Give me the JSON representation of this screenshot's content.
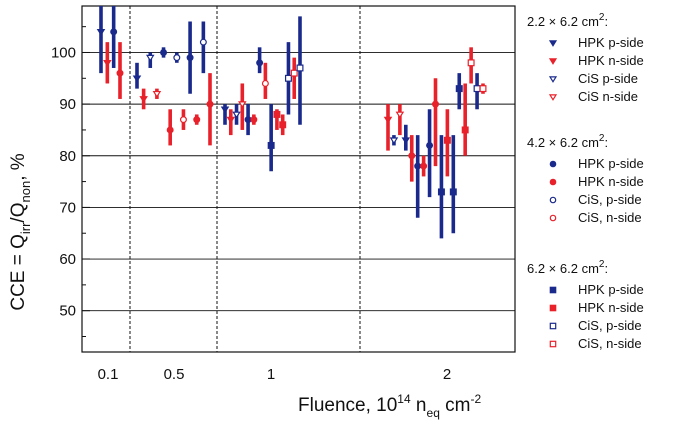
{
  "chart_data": {
    "type": "scatter",
    "xlabel": {
      "main": "Fluence, 10",
      "sup": "14",
      "n": " n",
      "sub": "eq",
      "unit": " cm",
      "unitsup": "-2"
    },
    "ylabel": {
      "main": "CCE = Q",
      "sub1": "irr",
      "mid": "/Q",
      "sub2": "non",
      "tail": ", %"
    },
    "ylim": [
      42,
      109
    ],
    "yticks": [
      50,
      60,
      70,
      80,
      90,
      100
    ],
    "xtick_labels": [
      "0.1",
      "0.5",
      "1",
      "2"
    ],
    "grid": "horizontal",
    "legend_position": "right",
    "colors": {
      "hpk": "#1a2a8c",
      "cis": "#1a2a8c",
      "red": "#e8212a"
    },
    "legend_groups": [
      {
        "title": "2.2 × 6.2 cm",
        "sup": "2",
        "suffix": ":",
        "marker": "triangle",
        "entries": [
          {
            "label": "HPK p-side",
            "color": "#1a2a8c",
            "filled": true
          },
          {
            "label": "HPK n-side",
            "color": "#e8212a",
            "filled": true
          },
          {
            "label": "CiS p-side",
            "color": "#1a2a8c",
            "filled": false
          },
          {
            "label": "CiS n-side",
            "color": "#e8212a",
            "filled": false
          }
        ]
      },
      {
        "title": "4.2 × 6.2 cm",
        "sup": "2",
        "suffix": ":",
        "marker": "circle",
        "entries": [
          {
            "label": "HPK p-side",
            "color": "#1a2a8c",
            "filled": true
          },
          {
            "label": "HPK n-side",
            "color": "#e8212a",
            "filled": true
          },
          {
            "label": "CiS, p-side",
            "color": "#1a2a8c",
            "filled": false
          },
          {
            "label": "CiS, n-side",
            "color": "#e8212a",
            "filled": false
          }
        ]
      },
      {
        "title": "6.2 × 6.2 cm",
        "sup": "2",
        "suffix": ":",
        "marker": "square",
        "entries": [
          {
            "label": "HPK p-side",
            "color": "#1a2a8c",
            "filled": true
          },
          {
            "label": "HPK n-side",
            "color": "#e8212a",
            "filled": true
          },
          {
            "label": "CiS, p-side",
            "color": "#1a2a8c",
            "filled": false
          },
          {
            "label": "CiS, n-side",
            "color": "#e8212a",
            "filled": false
          }
        ]
      }
    ],
    "points": [
      {
        "group": "0.1",
        "marker": "triangle",
        "side": "p",
        "filled": true,
        "y": 104,
        "lo": 96,
        "hi": 109
      },
      {
        "group": "0.1",
        "marker": "triangle",
        "side": "n",
        "filled": true,
        "y": 98,
        "lo": 94,
        "hi": 102
      },
      {
        "group": "0.1",
        "marker": "circle",
        "side": "p",
        "filled": true,
        "y": 104,
        "lo": 97,
        "hi": 109
      },
      {
        "group": "0.1",
        "marker": "circle",
        "side": "n",
        "filled": true,
        "y": 96,
        "lo": 91,
        "hi": 102
      },
      {
        "group": "0.5",
        "marker": "triangle",
        "side": "p",
        "filled": true,
        "y": 95,
        "lo": 93,
        "hi": 98
      },
      {
        "group": "0.5",
        "marker": "triangle",
        "side": "n",
        "filled": true,
        "y": 91,
        "lo": 89,
        "hi": 93
      },
      {
        "group": "0.5",
        "marker": "triangle",
        "side": "p",
        "filled": false,
        "y": 99,
        "lo": 97,
        "hi": 100
      },
      {
        "group": "0.5",
        "marker": "triangle",
        "side": "n",
        "filled": false,
        "y": 92,
        "lo": 91,
        "hi": 93
      },
      {
        "group": "0.5",
        "marker": "circle",
        "side": "p",
        "filled": true,
        "y": 100,
        "lo": 99,
        "hi": 101
      },
      {
        "group": "0.5",
        "marker": "circle",
        "side": "n",
        "filled": true,
        "y": 85,
        "lo": 82,
        "hi": 89
      },
      {
        "group": "0.5",
        "marker": "circle",
        "side": "p",
        "filled": false,
        "y": 99,
        "lo": 98,
        "hi": 100
      },
      {
        "group": "0.5",
        "marker": "circle",
        "side": "n",
        "filled": false,
        "y": 87,
        "lo": 85,
        "hi": 89
      },
      {
        "group": "0.5",
        "marker": "circle",
        "side": "p",
        "filled": true,
        "y": 99,
        "lo": 92,
        "hi": 106
      },
      {
        "group": "0.5",
        "marker": "circle",
        "side": "n",
        "filled": true,
        "y": 87,
        "lo": 86,
        "hi": 88
      },
      {
        "group": "0.5",
        "marker": "circle",
        "side": "p",
        "filled": false,
        "y": 102,
        "lo": 96,
        "hi": 106
      },
      {
        "group": "0.5",
        "marker": "circle",
        "side": "n",
        "filled": true,
        "y": 90,
        "lo": 82,
        "hi": 96
      },
      {
        "group": "1",
        "marker": "triangle",
        "side": "p",
        "filled": true,
        "y": 89,
        "lo": 86,
        "hi": 90
      },
      {
        "group": "1",
        "marker": "triangle",
        "side": "n",
        "filled": true,
        "y": 87,
        "lo": 84,
        "hi": 89
      },
      {
        "group": "1",
        "marker": "triangle",
        "side": "p",
        "filled": false,
        "y": 88,
        "lo": 86,
        "hi": 90
      },
      {
        "group": "1",
        "marker": "triangle",
        "side": "n",
        "filled": false,
        "y": 90,
        "lo": 85,
        "hi": 94
      },
      {
        "group": "1",
        "marker": "circle",
        "side": "p",
        "filled": true,
        "y": 87,
        "lo": 84,
        "hi": 90
      },
      {
        "group": "1",
        "marker": "circle",
        "side": "n",
        "filled": true,
        "y": 87,
        "lo": 86,
        "hi": 88
      },
      {
        "group": "1",
        "marker": "circle",
        "side": "p",
        "filled": true,
        "y": 98,
        "lo": 96,
        "hi": 101
      },
      {
        "group": "1",
        "marker": "circle",
        "side": "n",
        "filled": false,
        "y": 94,
        "lo": 91,
        "hi": 98
      },
      {
        "group": "1",
        "marker": "square",
        "side": "p",
        "filled": true,
        "y": 82,
        "lo": 77,
        "hi": 90
      },
      {
        "group": "1",
        "marker": "square",
        "side": "n",
        "filled": true,
        "y": 88,
        "lo": 85,
        "hi": 89
      },
      {
        "group": "1",
        "marker": "square",
        "side": "n",
        "filled": true,
        "y": 86,
        "lo": 84,
        "hi": 88
      },
      {
        "group": "1",
        "marker": "square",
        "side": "p",
        "filled": false,
        "y": 95,
        "lo": 88,
        "hi": 102
      },
      {
        "group": "1",
        "marker": "square",
        "side": "n",
        "filled": false,
        "y": 96,
        "lo": 91,
        "hi": 99
      },
      {
        "group": "1",
        "marker": "square",
        "side": "p",
        "filled": false,
        "y": 97,
        "lo": 86,
        "hi": 107
      },
      {
        "group": "2",
        "marker": "triangle",
        "side": "n",
        "filled": true,
        "y": 87,
        "lo": 81,
        "hi": 90
      },
      {
        "group": "2",
        "marker": "triangle",
        "side": "p",
        "filled": false,
        "y": 83,
        "lo": 82,
        "hi": 84
      },
      {
        "group": "2",
        "marker": "triangle",
        "side": "n",
        "filled": false,
        "y": 88,
        "lo": 84,
        "hi": 90
      },
      {
        "group": "2",
        "marker": "triangle",
        "side": "p",
        "filled": true,
        "y": 83,
        "lo": 81,
        "hi": 86
      },
      {
        "group": "2",
        "marker": "circle",
        "side": "n",
        "filled": true,
        "y": 80,
        "lo": 75,
        "hi": 84
      },
      {
        "group": "2",
        "marker": "circle",
        "side": "p",
        "filled": true,
        "y": 78,
        "lo": 68,
        "hi": 84
      },
      {
        "group": "2",
        "marker": "circle",
        "side": "n",
        "filled": true,
        "y": 78,
        "lo": 76,
        "hi": 80
      },
      {
        "group": "2",
        "marker": "circle",
        "side": "p",
        "filled": true,
        "y": 82,
        "lo": 72,
        "hi": 89
      },
      {
        "group": "2",
        "marker": "circle",
        "side": "n",
        "filled": true,
        "y": 90,
        "lo": 78,
        "hi": 95
      },
      {
        "group": "2",
        "marker": "square",
        "side": "p",
        "filled": true,
        "y": 73,
        "lo": 64,
        "hi": 84
      },
      {
        "group": "2",
        "marker": "square",
        "side": "n",
        "filled": true,
        "y": 83,
        "lo": 76,
        "hi": 89
      },
      {
        "group": "2",
        "marker": "square",
        "side": "p",
        "filled": true,
        "y": 73,
        "lo": 65,
        "hi": 84
      },
      {
        "group": "2",
        "marker": "square",
        "side": "p",
        "filled": true,
        "y": 93,
        "lo": 89,
        "hi": 96
      },
      {
        "group": "2",
        "marker": "square",
        "side": "n",
        "filled": true,
        "y": 85,
        "lo": 80,
        "hi": 94
      },
      {
        "group": "2",
        "marker": "square",
        "side": "n",
        "filled": false,
        "y": 98,
        "lo": 94,
        "hi": 101
      },
      {
        "group": "2",
        "marker": "square",
        "side": "p",
        "filled": false,
        "y": 93,
        "lo": 89,
        "hi": 96
      },
      {
        "group": "2",
        "marker": "square",
        "side": "n",
        "filled": false,
        "y": 93,
        "lo": 92,
        "hi": 94
      }
    ]
  }
}
